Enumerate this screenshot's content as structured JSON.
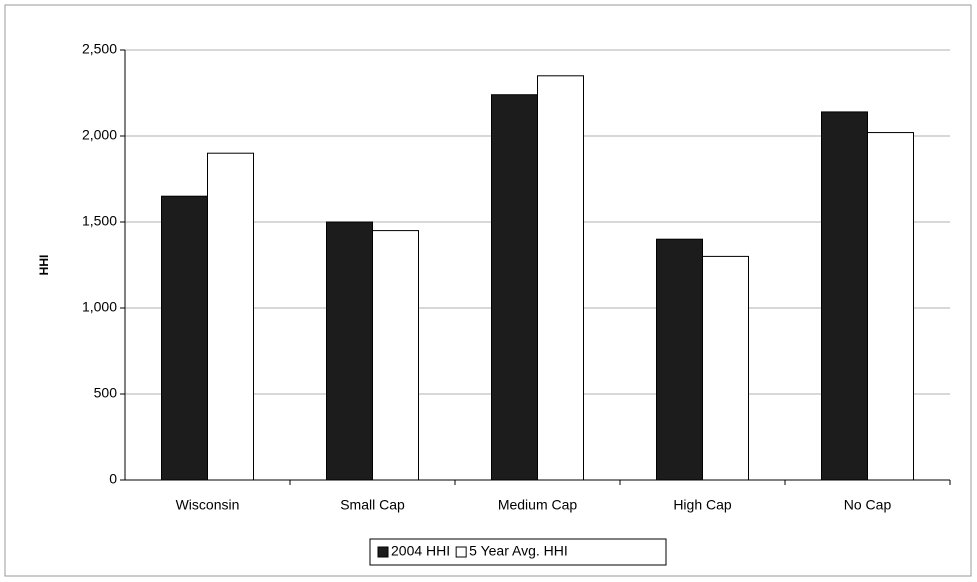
{
  "chart_data": {
    "type": "bar",
    "y_label": "HHI",
    "categories": [
      "Wisconsin",
      "Small Cap",
      "Medium Cap",
      "High Cap",
      "No Cap"
    ],
    "series": [
      {
        "name": "2004 HHI",
        "color": "#1c1c1c",
        "values": [
          1650,
          1500,
          2240,
          1400,
          2140
        ]
      },
      {
        "name": "5 Year Avg. HHI",
        "color": "#ffffff",
        "values": [
          1900,
          1450,
          2350,
          1300,
          2020
        ]
      }
    ],
    "ylim": [
      0,
      2500
    ],
    "yticks": [
      0,
      500,
      {
        "value": 1000,
        "label": "1,000"
      },
      {
        "value": 1500,
        "label": "1,500"
      },
      {
        "value": 2000,
        "label": "2,000"
      },
      {
        "value": 2500,
        "label": "2,500"
      }
    ],
    "grid": true,
    "legend": "bottom"
  }
}
